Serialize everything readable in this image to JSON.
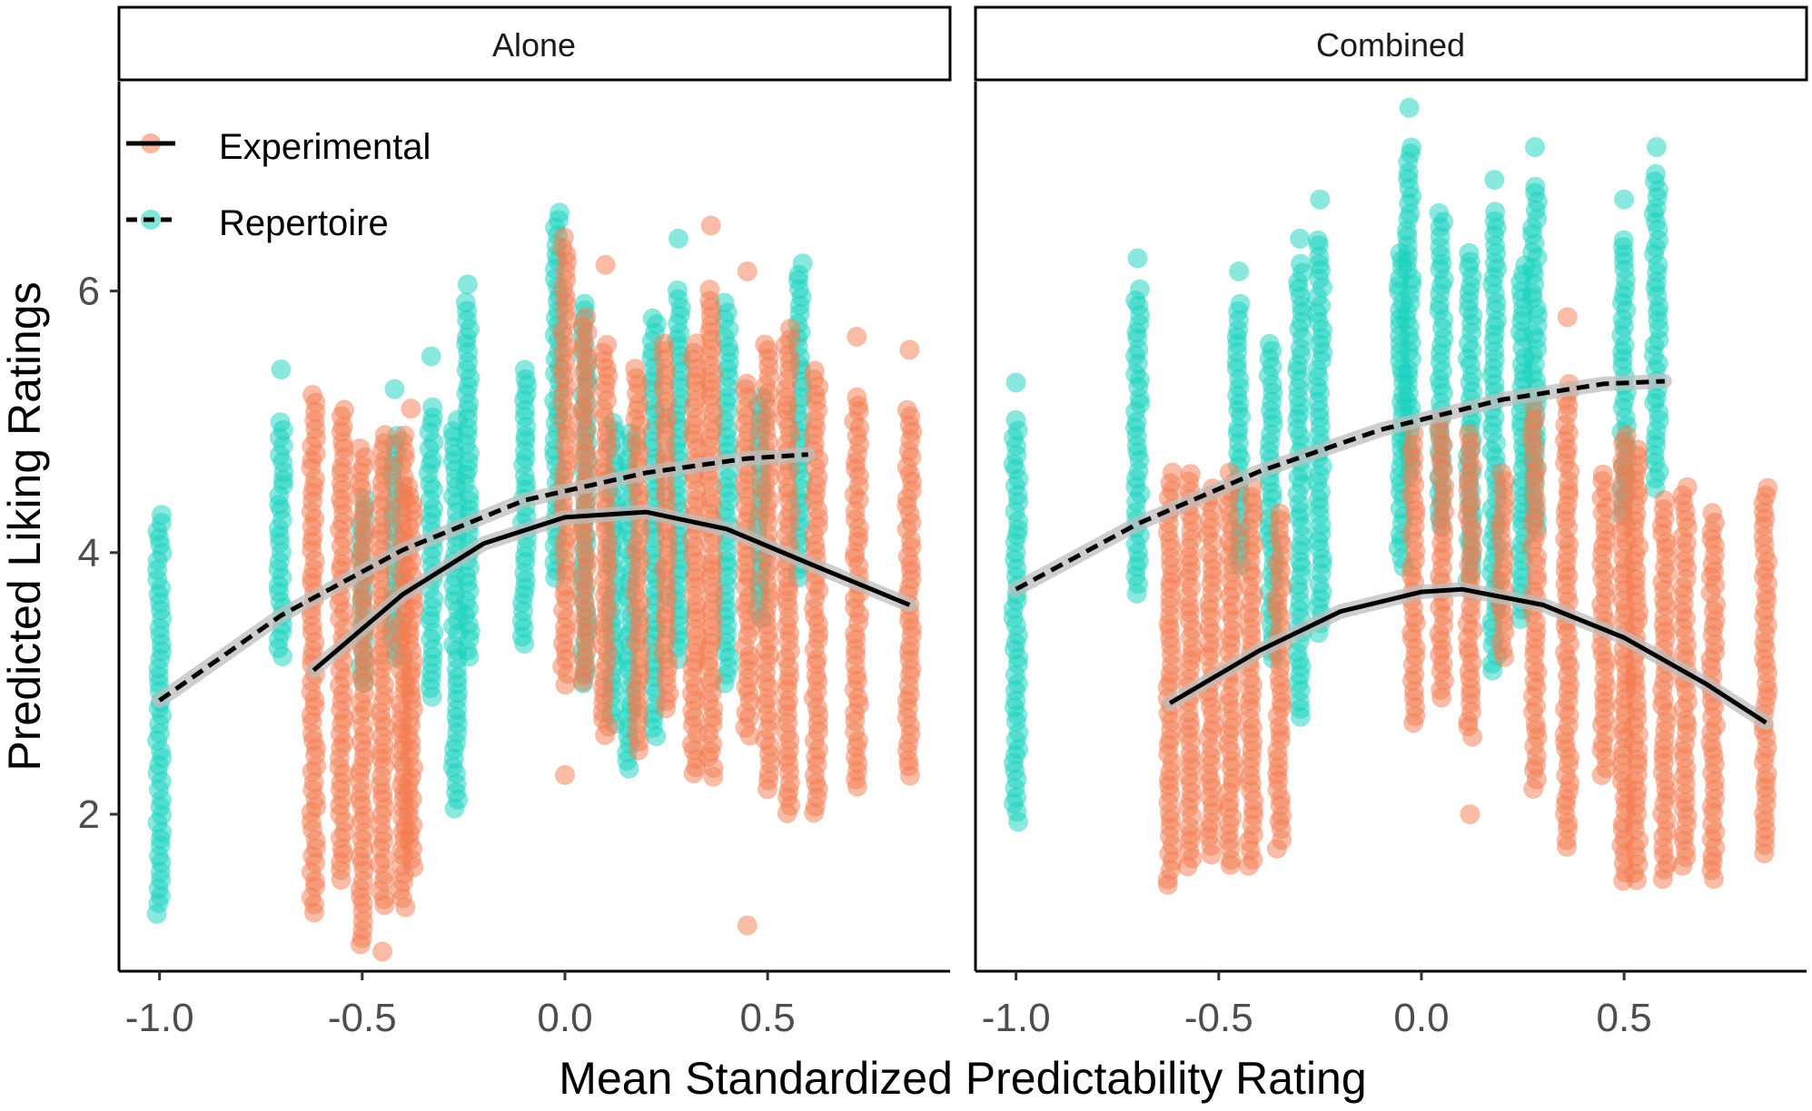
{
  "chart_data": {
    "type": "scatter",
    "title": "",
    "xlabel": "Mean Standardized Predictability Rating",
    "ylabel": "Predicted Liking Ratings",
    "xlim": [
      -1.1,
      0.95
    ],
    "ylim": [
      0.8,
      7.6
    ],
    "xticks": [
      -1.0,
      -0.5,
      0.0,
      0.5
    ],
    "xtick_labels": [
      "-1.0",
      "-0.5",
      "0.0",
      "0.5"
    ],
    "yticks": [
      2,
      4,
      6
    ],
    "ytick_labels": [
      "2",
      "4",
      "6"
    ],
    "legend": {
      "placement": "top-left",
      "entries": [
        {
          "name": "Experimental",
          "color": "#F4794E",
          "line": "solid"
        },
        {
          "name": "Repertoire",
          "color": "#17D1BE",
          "line": "dashed"
        }
      ]
    },
    "colors": {
      "Experimental": "#F4794E",
      "Repertoire": "#17D1BE",
      "line": "#000000",
      "ribbon": "#BDBDBD"
    },
    "panels": [
      {
        "name": "Alone",
        "series": [
          {
            "name": "Repertoire",
            "columns": [
              {
                "x": -1.0,
                "ymin": 1.25,
                "ymax": 4.3,
                "outliers": []
              },
              {
                "x": -0.7,
                "ymin": 3.2,
                "ymax": 5.0,
                "outliers": [
                  5.4
                ]
              },
              {
                "x": -0.5,
                "ymin": 3.0,
                "ymax": 4.4,
                "outliers": []
              },
              {
                "x": -0.42,
                "ymin": 3.2,
                "ymax": 4.9,
                "outliers": [
                  5.25
                ]
              },
              {
                "x": -0.33,
                "ymin": 2.9,
                "ymax": 5.1,
                "outliers": [
                  5.5
                ]
              },
              {
                "x": -0.27,
                "ymin": 2.05,
                "ymax": 5.0,
                "outliers": []
              },
              {
                "x": -0.24,
                "ymin": 3.2,
                "ymax": 5.9,
                "outliers": [
                  6.05
                ]
              },
              {
                "x": -0.1,
                "ymin": 3.3,
                "ymax": 5.4,
                "outliers": []
              },
              {
                "x": -0.02,
                "ymin": 3.8,
                "ymax": 6.6,
                "outliers": []
              },
              {
                "x": 0.05,
                "ymin": 3.0,
                "ymax": 5.9,
                "outliers": []
              },
              {
                "x": 0.12,
                "ymin": 2.7,
                "ymax": 5.0,
                "outliers": []
              },
              {
                "x": 0.16,
                "ymin": 2.35,
                "ymax": 4.9,
                "outliers": []
              },
              {
                "x": 0.22,
                "ymin": 2.6,
                "ymax": 5.8,
                "outliers": []
              },
              {
                "x": 0.28,
                "ymin": 3.2,
                "ymax": 6.0,
                "outliers": [
                  6.4
                ]
              },
              {
                "x": 0.4,
                "ymin": 3.0,
                "ymax": 5.9,
                "outliers": []
              },
              {
                "x": 0.48,
                "ymin": 3.5,
                "ymax": 5.2,
                "outliers": []
              },
              {
                "x": 0.58,
                "ymin": 3.8,
                "ymax": 6.2,
                "outliers": []
              }
            ],
            "fit": {
              "x": [
                -1.0,
                -0.7,
                -0.4,
                -0.1,
                0.2,
                0.45,
                0.6
              ],
              "y": [
                2.87,
                3.52,
                4.02,
                4.4,
                4.61,
                4.72,
                4.75
              ],
              "style": "dashed"
            }
          },
          {
            "name": "Experimental",
            "columns": [
              {
                "x": -0.62,
                "ymin": 1.25,
                "ymax": 5.2,
                "outliers": []
              },
              {
                "x": -0.55,
                "ymin": 1.5,
                "ymax": 5.1,
                "outliers": []
              },
              {
                "x": -0.5,
                "ymin": 1.0,
                "ymax": 4.8,
                "outliers": []
              },
              {
                "x": -0.45,
                "ymin": 1.3,
                "ymax": 4.9,
                "outliers": [
                  0.95
                ]
              },
              {
                "x": -0.4,
                "ymin": 1.3,
                "ymax": 4.9,
                "outliers": []
              },
              {
                "x": -0.38,
                "ymin": 1.6,
                "ymax": 4.5,
                "outliers": [
                  5.1
                ]
              },
              {
                "x": 0.0,
                "ymin": 3.0,
                "ymax": 6.4,
                "outliers": [
                  2.3
                ]
              },
              {
                "x": 0.05,
                "ymin": 3.0,
                "ymax": 5.8,
                "outliers": []
              },
              {
                "x": 0.1,
                "ymin": 2.6,
                "ymax": 5.6,
                "outliers": [
                  6.2
                ]
              },
              {
                "x": 0.18,
                "ymin": 2.5,
                "ymax": 5.4,
                "outliers": []
              },
              {
                "x": 0.25,
                "ymin": 2.8,
                "ymax": 5.6,
                "outliers": []
              },
              {
                "x": 0.32,
                "ymin": 2.3,
                "ymax": 5.6,
                "outliers": []
              },
              {
                "x": 0.36,
                "ymin": 2.3,
                "ymax": 6.0,
                "outliers": [
                  6.5
                ]
              },
              {
                "x": 0.45,
                "ymin": 2.6,
                "ymax": 5.3,
                "outliers": [
                  6.15,
                  1.15
                ]
              },
              {
                "x": 0.5,
                "ymin": 2.2,
                "ymax": 5.6,
                "outliers": []
              },
              {
                "x": 0.55,
                "ymin": 2.0,
                "ymax": 5.7,
                "outliers": []
              },
              {
                "x": 0.62,
                "ymin": 2.0,
                "ymax": 5.4,
                "outliers": []
              },
              {
                "x": 0.72,
                "ymin": 2.2,
                "ymax": 5.2,
                "outliers": [
                  5.65
                ]
              },
              {
                "x": 0.85,
                "ymin": 2.3,
                "ymax": 5.1,
                "outliers": [
                  5.55
                ]
              }
            ],
            "fit": {
              "x": [
                -0.62,
                -0.4,
                -0.2,
                0.0,
                0.2,
                0.4,
                0.6,
                0.85
              ],
              "y": [
                3.1,
                3.68,
                4.07,
                4.27,
                4.31,
                4.18,
                3.92,
                3.6
              ],
              "style": "solid"
            }
          }
        ]
      },
      {
        "name": "Combined",
        "series": [
          {
            "name": "Repertoire",
            "columns": [
              {
                "x": -1.0,
                "ymin": 1.95,
                "ymax": 5.0,
                "outliers": [
                  5.3
                ]
              },
              {
                "x": -0.7,
                "ymin": 3.7,
                "ymax": 6.0,
                "outliers": [
                  6.25
                ]
              },
              {
                "x": -0.45,
                "ymin": 3.9,
                "ymax": 5.9,
                "outliers": [
                  6.15
                ]
              },
              {
                "x": -0.37,
                "ymin": 3.2,
                "ymax": 5.6,
                "outliers": []
              },
              {
                "x": -0.3,
                "ymin": 2.75,
                "ymax": 6.2,
                "outliers": [
                  6.4
                ]
              },
              {
                "x": -0.25,
                "ymin": 3.4,
                "ymax": 6.4,
                "outliers": [
                  6.7
                ]
              },
              {
                "x": -0.05,
                "ymin": 3.9,
                "ymax": 6.3,
                "outliers": []
              },
              {
                "x": -0.03,
                "ymin": 4.6,
                "ymax": 7.1,
                "outliers": [
                  7.4
                ]
              },
              {
                "x": 0.05,
                "ymin": 4.2,
                "ymax": 6.6,
                "outliers": []
              },
              {
                "x": 0.12,
                "ymin": 3.8,
                "ymax": 6.3,
                "outliers": []
              },
              {
                "x": 0.18,
                "ymin": 3.1,
                "ymax": 6.6,
                "outliers": [
                  6.85
                ]
              },
              {
                "x": 0.25,
                "ymin": 3.5,
                "ymax": 6.2,
                "outliers": []
              },
              {
                "x": 0.28,
                "ymin": 4.2,
                "ymax": 6.8,
                "outliers": [
                  7.1
                ]
              },
              {
                "x": 0.5,
                "ymin": 4.3,
                "ymax": 6.4,
                "outliers": [
                  6.7
                ]
              },
              {
                "x": 0.58,
                "ymin": 4.5,
                "ymax": 6.9,
                "outliers": [
                  7.1
                ]
              }
            ],
            "fit": {
              "x": [
                -1.0,
                -0.7,
                -0.4,
                -0.1,
                0.2,
                0.45,
                0.6
              ],
              "y": [
                3.72,
                4.22,
                4.62,
                4.94,
                5.17,
                5.29,
                5.31
              ],
              "style": "dashed"
            }
          },
          {
            "name": "Experimental",
            "columns": [
              {
                "x": -0.62,
                "ymin": 1.45,
                "ymax": 4.6,
                "outliers": []
              },
              {
                "x": -0.57,
                "ymin": 1.6,
                "ymax": 4.6,
                "outliers": []
              },
              {
                "x": -0.52,
                "ymin": 1.7,
                "ymax": 4.5,
                "outliers": []
              },
              {
                "x": -0.47,
                "ymin": 1.6,
                "ymax": 4.6,
                "outliers": []
              },
              {
                "x": -0.42,
                "ymin": 1.6,
                "ymax": 4.5,
                "outliers": []
              },
              {
                "x": -0.35,
                "ymin": 1.75,
                "ymax": 4.3,
                "outliers": []
              },
              {
                "x": -0.02,
                "ymin": 2.7,
                "ymax": 4.9,
                "outliers": []
              },
              {
                "x": 0.05,
                "ymin": 2.9,
                "ymax": 5.0,
                "outliers": []
              },
              {
                "x": 0.12,
                "ymin": 2.6,
                "ymax": 4.9,
                "outliers": [
                  2.0
                ]
              },
              {
                "x": 0.2,
                "ymin": 3.2,
                "ymax": 4.6,
                "outliers": []
              },
              {
                "x": 0.28,
                "ymin": 2.2,
                "ymax": 5.1,
                "outliers": []
              },
              {
                "x": 0.36,
                "ymin": 1.75,
                "ymax": 5.3,
                "outliers": [
                  5.8
                ]
              },
              {
                "x": 0.45,
                "ymin": 2.3,
                "ymax": 4.6,
                "outliers": []
              },
              {
                "x": 0.5,
                "ymin": 1.5,
                "ymax": 4.9,
                "outliers": []
              },
              {
                "x": 0.53,
                "ymin": 1.5,
                "ymax": 4.8,
                "outliers": []
              },
              {
                "x": 0.6,
                "ymin": 1.5,
                "ymax": 4.4,
                "outliers": []
              },
              {
                "x": 0.65,
                "ymin": 1.6,
                "ymax": 4.5,
                "outliers": []
              },
              {
                "x": 0.72,
                "ymin": 1.5,
                "ymax": 4.3,
                "outliers": []
              },
              {
                "x": 0.85,
                "ymin": 1.7,
                "ymax": 4.5,
                "outliers": []
              }
            ],
            "fit": {
              "x": [
                -0.62,
                -0.4,
                -0.2,
                0.0,
                0.1,
                0.3,
                0.5,
                0.7,
                0.85
              ],
              "y": [
                2.85,
                3.25,
                3.55,
                3.7,
                3.72,
                3.6,
                3.35,
                3.0,
                2.7
              ],
              "style": "solid"
            }
          }
        ]
      }
    ]
  }
}
